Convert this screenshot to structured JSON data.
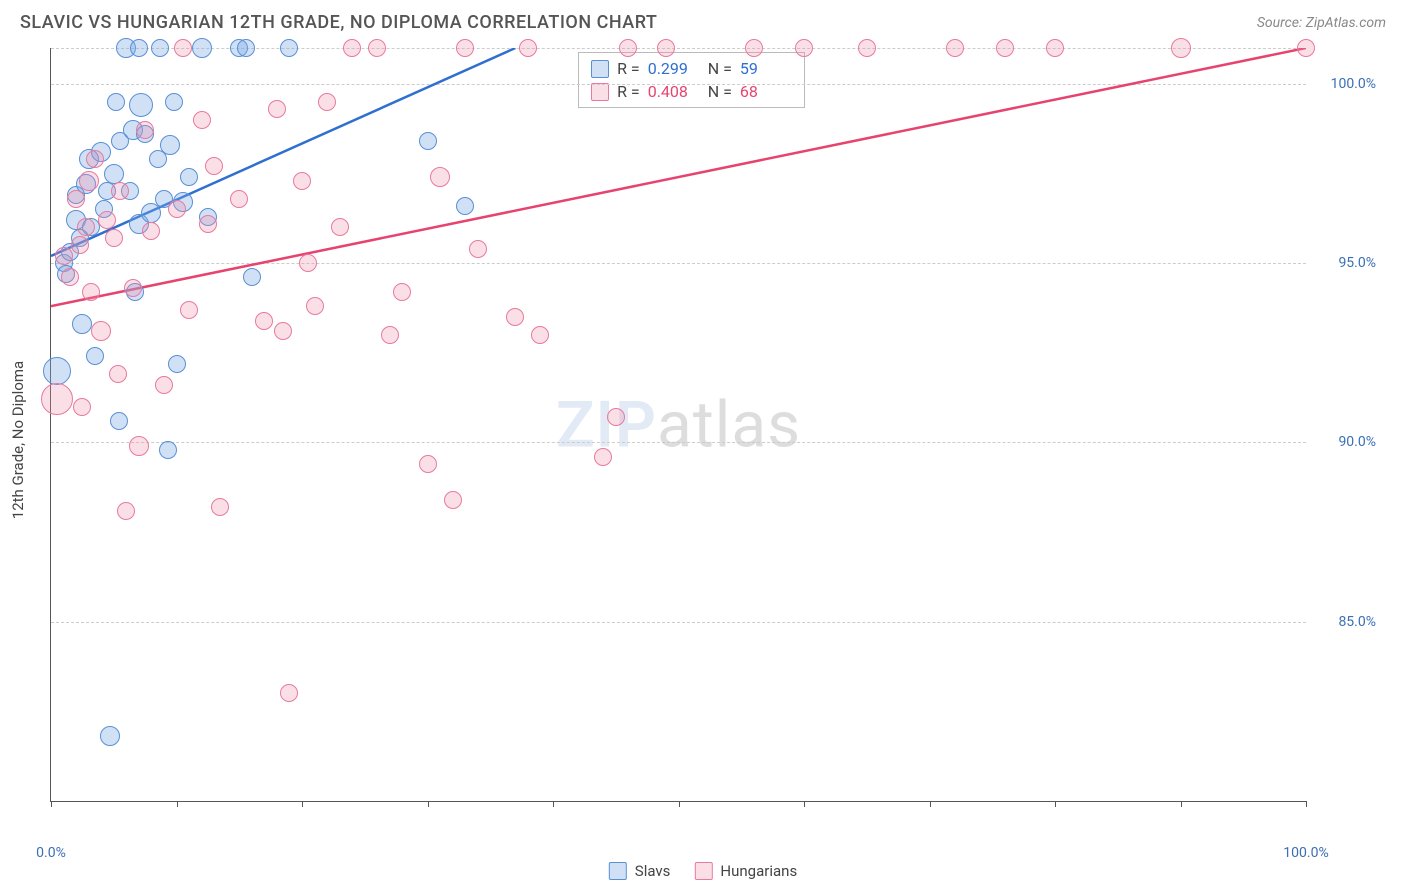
{
  "header": {
    "title": "SLAVIC VS HUNGARIAN 12TH GRADE, NO DIPLOMA CORRELATION CHART",
    "source": "Source: ZipAtlas.com"
  },
  "watermark": {
    "zip": "ZIP",
    "atlas": "atlas"
  },
  "chart": {
    "type": "scatter",
    "y_axis_title": "12th Grade, No Diploma",
    "background_color": "#ffffff",
    "grid_color": "#cccccc",
    "axis_color": "#555555",
    "tick_label_color": "#3b6fb6",
    "xlim": [
      0,
      100
    ],
    "ylim": [
      80,
      101
    ],
    "x_ticks": [
      0,
      10,
      20,
      30,
      40,
      50,
      60,
      70,
      80,
      90,
      100
    ],
    "x_tick_labels": {
      "0": "0.0%",
      "100": "100.0%"
    },
    "y_gridlines": [
      85,
      90,
      95,
      100,
      101
    ],
    "y_tick_labels": {
      "85": "85.0%",
      "90": "90.0%",
      "95": "95.0%",
      "100": "100.0%"
    },
    "series": [
      {
        "name": "Slavs",
        "fill_color": "rgba(120,170,230,0.35)",
        "stroke_color": "#5a8fd6",
        "trend_color": "#2f6fd0",
        "trend": {
          "x1": 0,
          "y1": 95.2,
          "x2": 37,
          "y2": 101
        },
        "points": [
          {
            "x": 0.5,
            "y": 92.0,
            "r": 14
          },
          {
            "x": 1,
            "y": 95.0,
            "r": 9
          },
          {
            "x": 1.2,
            "y": 94.7,
            "r": 9
          },
          {
            "x": 1.5,
            "y": 95.3,
            "r": 9
          },
          {
            "x": 2,
            "y": 96.2,
            "r": 10
          },
          {
            "x": 2,
            "y": 96.9,
            "r": 9
          },
          {
            "x": 2.3,
            "y": 95.7,
            "r": 9
          },
          {
            "x": 2.5,
            "y": 93.3,
            "r": 10
          },
          {
            "x": 2.8,
            "y": 97.2,
            "r": 10
          },
          {
            "x": 3,
            "y": 97.9,
            "r": 10
          },
          {
            "x": 3.2,
            "y": 96.0,
            "r": 9
          },
          {
            "x": 3.5,
            "y": 92.4,
            "r": 9
          },
          {
            "x": 4,
            "y": 98.1,
            "r": 10
          },
          {
            "x": 4.2,
            "y": 96.5,
            "r": 9
          },
          {
            "x": 4.5,
            "y": 97.0,
            "r": 9
          },
          {
            "x": 4.7,
            "y": 81.8,
            "r": 10
          },
          {
            "x": 5,
            "y": 97.5,
            "r": 10
          },
          {
            "x": 5.2,
            "y": 99.5,
            "r": 9
          },
          {
            "x": 5.4,
            "y": 90.6,
            "r": 9
          },
          {
            "x": 5.5,
            "y": 98.4,
            "r": 9
          },
          {
            "x": 6,
            "y": 101,
            "r": 10
          },
          {
            "x": 6.3,
            "y": 97.0,
            "r": 9
          },
          {
            "x": 6.5,
            "y": 98.7,
            "r": 10
          },
          {
            "x": 6.7,
            "y": 94.2,
            "r": 9
          },
          {
            "x": 7,
            "y": 96.1,
            "r": 10
          },
          {
            "x": 7,
            "y": 101,
            "r": 9
          },
          {
            "x": 7.2,
            "y": 99.4,
            "r": 12
          },
          {
            "x": 7.5,
            "y": 98.6,
            "r": 9
          },
          {
            "x": 8,
            "y": 96.4,
            "r": 10
          },
          {
            "x": 8.5,
            "y": 97.9,
            "r": 9
          },
          {
            "x": 8.7,
            "y": 101,
            "r": 9
          },
          {
            "x": 9,
            "y": 96.8,
            "r": 9
          },
          {
            "x": 9.3,
            "y": 89.8,
            "r": 9
          },
          {
            "x": 9.5,
            "y": 98.3,
            "r": 10
          },
          {
            "x": 9.8,
            "y": 99.5,
            "r": 9
          },
          {
            "x": 10,
            "y": 92.2,
            "r": 9
          },
          {
            "x": 10.5,
            "y": 96.7,
            "r": 10
          },
          {
            "x": 11,
            "y": 97.4,
            "r": 9
          },
          {
            "x": 12,
            "y": 101,
            "r": 10
          },
          {
            "x": 12.5,
            "y": 96.3,
            "r": 9
          },
          {
            "x": 15,
            "y": 101,
            "r": 9
          },
          {
            "x": 15.5,
            "y": 101,
            "r": 9
          },
          {
            "x": 16,
            "y": 94.6,
            "r": 9
          },
          {
            "x": 19,
            "y": 101,
            "r": 9
          },
          {
            "x": 30,
            "y": 98.4,
            "r": 9
          },
          {
            "x": 33,
            "y": 96.6,
            "r": 9
          }
        ]
      },
      {
        "name": "Hungarians",
        "fill_color": "rgba(240,140,170,0.28)",
        "stroke_color": "#e77aa0",
        "trend_color": "#e6446f",
        "trend": {
          "x1": 0,
          "y1": 93.8,
          "x2": 100,
          "y2": 101
        },
        "points": [
          {
            "x": 0.5,
            "y": 91.2,
            "r": 16
          },
          {
            "x": 1,
            "y": 95.2,
            "r": 9
          },
          {
            "x": 1.5,
            "y": 94.6,
            "r": 9
          },
          {
            "x": 2,
            "y": 96.8,
            "r": 9
          },
          {
            "x": 2.3,
            "y": 95.5,
            "r": 9
          },
          {
            "x": 2.5,
            "y": 91.0,
            "r": 9
          },
          {
            "x": 2.8,
            "y": 96.0,
            "r": 9
          },
          {
            "x": 3,
            "y": 97.3,
            "r": 10
          },
          {
            "x": 3.2,
            "y": 94.2,
            "r": 9
          },
          {
            "x": 3.5,
            "y": 97.9,
            "r": 9
          },
          {
            "x": 4,
            "y": 93.1,
            "r": 10
          },
          {
            "x": 4.5,
            "y": 96.2,
            "r": 9
          },
          {
            "x": 5,
            "y": 95.7,
            "r": 9
          },
          {
            "x": 5.3,
            "y": 91.9,
            "r": 9
          },
          {
            "x": 5.5,
            "y": 97.0,
            "r": 9
          },
          {
            "x": 6,
            "y": 88.1,
            "r": 9
          },
          {
            "x": 6.5,
            "y": 94.3,
            "r": 9
          },
          {
            "x": 7,
            "y": 89.9,
            "r": 10
          },
          {
            "x": 7.5,
            "y": 98.7,
            "r": 9
          },
          {
            "x": 8,
            "y": 95.9,
            "r": 9
          },
          {
            "x": 9,
            "y": 91.6,
            "r": 9
          },
          {
            "x": 10,
            "y": 96.5,
            "r": 9
          },
          {
            "x": 10.5,
            "y": 101,
            "r": 9
          },
          {
            "x": 11,
            "y": 93.7,
            "r": 9
          },
          {
            "x": 12,
            "y": 99,
            "r": 9
          },
          {
            "x": 12.5,
            "y": 96.1,
            "r": 9
          },
          {
            "x": 13,
            "y": 97.7,
            "r": 9
          },
          {
            "x": 13.5,
            "y": 88.2,
            "r": 9
          },
          {
            "x": 15,
            "y": 96.8,
            "r": 9
          },
          {
            "x": 17,
            "y": 93.4,
            "r": 9
          },
          {
            "x": 18,
            "y": 99.3,
            "r": 9
          },
          {
            "x": 18.5,
            "y": 93.1,
            "r": 9
          },
          {
            "x": 19,
            "y": 83.0,
            "r": 9
          },
          {
            "x": 20,
            "y": 97.3,
            "r": 9
          },
          {
            "x": 20.5,
            "y": 95.0,
            "r": 9
          },
          {
            "x": 21,
            "y": 93.8,
            "r": 9
          },
          {
            "x": 22,
            "y": 99.5,
            "r": 9
          },
          {
            "x": 23,
            "y": 96.0,
            "r": 9
          },
          {
            "x": 24,
            "y": 101,
            "r": 9
          },
          {
            "x": 26,
            "y": 101,
            "r": 9
          },
          {
            "x": 27,
            "y": 93.0,
            "r": 9
          },
          {
            "x": 28,
            "y": 94.2,
            "r": 9
          },
          {
            "x": 30,
            "y": 89.4,
            "r": 9
          },
          {
            "x": 31,
            "y": 97.4,
            "r": 10
          },
          {
            "x": 32,
            "y": 88.4,
            "r": 9
          },
          {
            "x": 33,
            "y": 101,
            "r": 9
          },
          {
            "x": 34,
            "y": 95.4,
            "r": 9
          },
          {
            "x": 37,
            "y": 93.5,
            "r": 9
          },
          {
            "x": 38,
            "y": 101,
            "r": 9
          },
          {
            "x": 39,
            "y": 93.0,
            "r": 9
          },
          {
            "x": 44,
            "y": 89.6,
            "r": 9
          },
          {
            "x": 45,
            "y": 90.7,
            "r": 9
          },
          {
            "x": 46,
            "y": 101,
            "r": 9
          },
          {
            "x": 49,
            "y": 101,
            "r": 9
          },
          {
            "x": 56,
            "y": 101,
            "r": 9
          },
          {
            "x": 60,
            "y": 101,
            "r": 9
          },
          {
            "x": 65,
            "y": 101,
            "r": 9
          },
          {
            "x": 72,
            "y": 101,
            "r": 9
          },
          {
            "x": 76,
            "y": 101,
            "r": 9
          },
          {
            "x": 80,
            "y": 101,
            "r": 9
          },
          {
            "x": 90,
            "y": 101,
            "r": 10
          },
          {
            "x": 100,
            "y": 101,
            "r": 9
          }
        ]
      }
    ],
    "stats_box": {
      "rows": [
        {
          "series": 0,
          "r_value": "0.299",
          "n_value": "59"
        },
        {
          "series": 1,
          "r_value": "0.408",
          "n_value": "68"
        }
      ],
      "r_label": "R =",
      "n_label": "N ="
    },
    "legend": [
      {
        "series": 0,
        "label": "Slavs"
      },
      {
        "series": 1,
        "label": "Hungarians"
      }
    ]
  }
}
